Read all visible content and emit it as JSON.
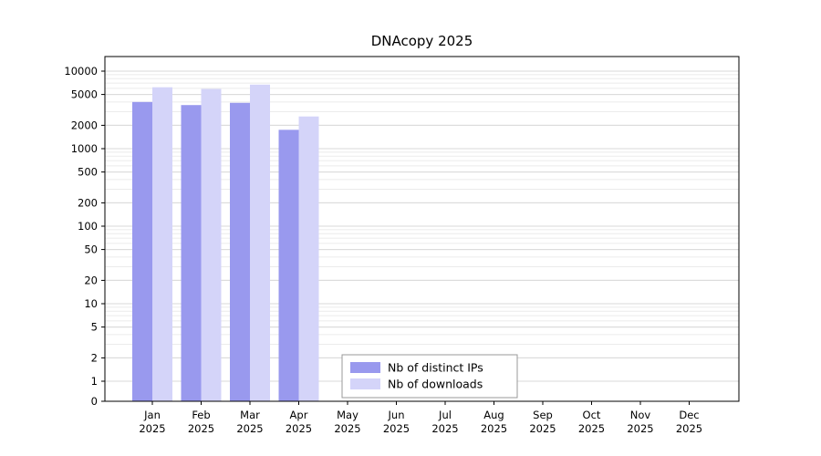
{
  "chart_data": {
    "type": "bar",
    "title": "DNAcopy 2025",
    "categories": [
      "Jan 2025",
      "Feb 2025",
      "Mar 2025",
      "Apr 2025",
      "May 2025",
      "Jun 2025",
      "Jul 2025",
      "Aug 2025",
      "Sep 2025",
      "Oct 2025",
      "Nov 2025",
      "Dec 2025"
    ],
    "series": [
      {
        "name": "Nb of distinct IPs",
        "color": "#9999ee",
        "values": [
          4000,
          3650,
          3900,
          1750,
          null,
          null,
          null,
          null,
          null,
          null,
          null,
          null
        ]
      },
      {
        "name": "Nb of downloads",
        "color": "#d4d4f9",
        "values": [
          6200,
          5900,
          6700,
          2600,
          null,
          null,
          null,
          null,
          null,
          null,
          null,
          null
        ]
      }
    ],
    "yticks": [
      0,
      1,
      2,
      5,
      10,
      20,
      50,
      100,
      200,
      500,
      1000,
      2000,
      5000,
      10000
    ],
    "scale": "symlog",
    "ylim": [
      0,
      15000
    ],
    "grid": true,
    "legend_position": "bottom-center-inside",
    "colors": {
      "grid_major": "#d9d9d9",
      "grid_minor": "#ebebeb",
      "axis": "#000000",
      "legend_border": "#999999"
    }
  }
}
